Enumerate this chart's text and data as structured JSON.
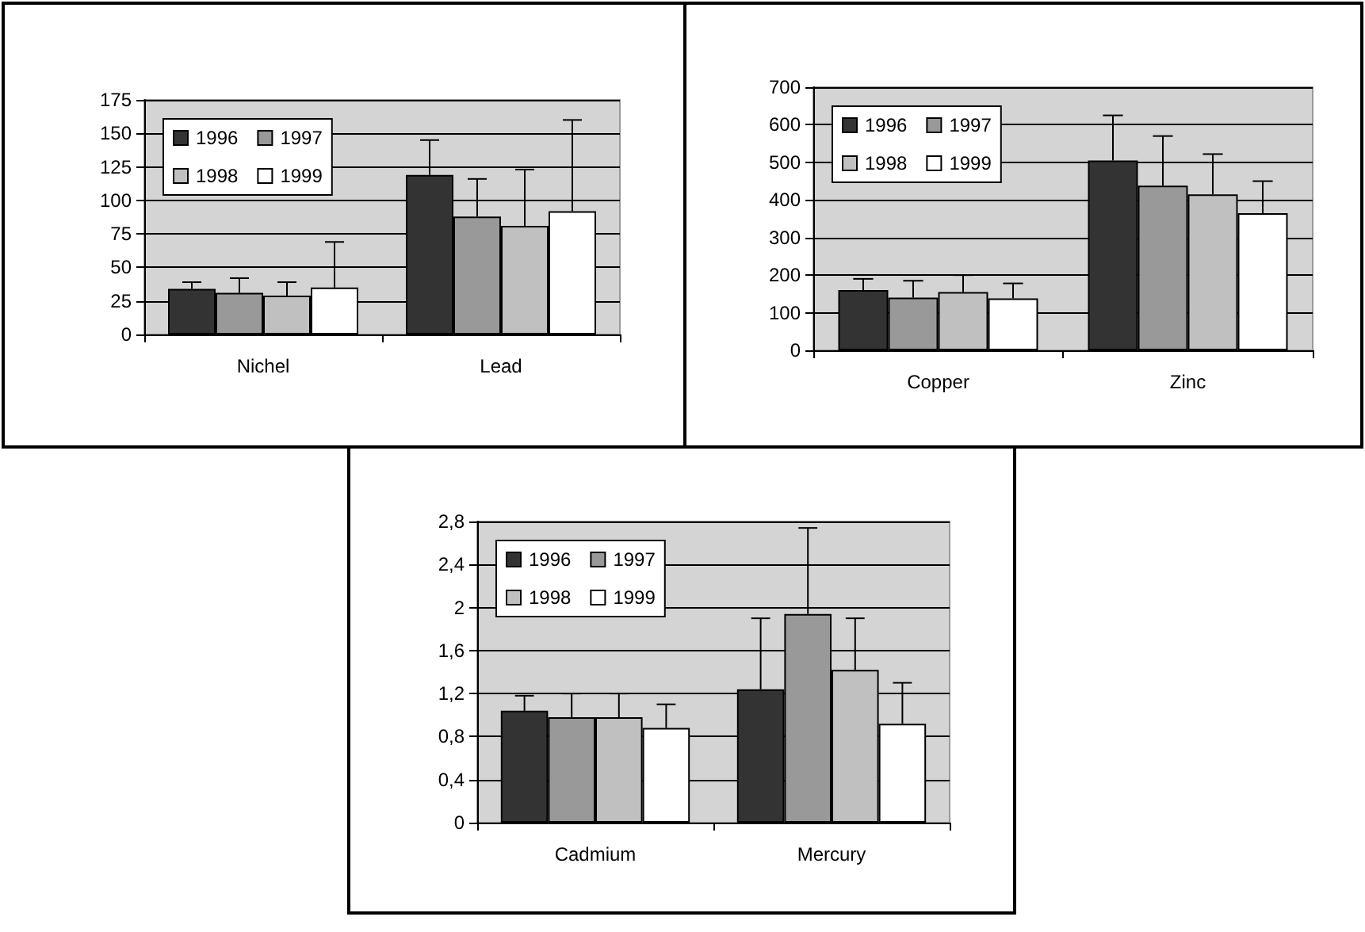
{
  "chart_data": [
    {
      "type": "bar",
      "categories": [
        "Nichel",
        "Lead"
      ],
      "ylim": [
        0,
        175
      ],
      "yticks": [
        0,
        25,
        50,
        75,
        100,
        125,
        150,
        175
      ],
      "grid": "y",
      "legend": "top left",
      "series": [
        {
          "name": "1996",
          "color": "#333333",
          "values": [
            34,
            119
          ],
          "errors": [
            [
              34,
              39
            ],
            [
              119,
              145
            ]
          ]
        },
        {
          "name": "1997",
          "color": "#999999",
          "values": [
            31,
            88
          ],
          "errors": [
            [
              31,
              42
            ],
            [
              88,
              116
            ]
          ]
        },
        {
          "name": "1998",
          "color": "#c0c0c0",
          "values": [
            29,
            81
          ],
          "errors": [
            [
              29,
              39
            ],
            [
              81,
              123
            ]
          ]
        },
        {
          "name": "1999",
          "color": "#ffffff",
          "values": [
            35,
            92
          ],
          "errors": [
            [
              35,
              69
            ],
            [
              92,
              160
            ]
          ]
        }
      ]
    },
    {
      "type": "bar",
      "categories": [
        "Copper",
        "Zinc"
      ],
      "ylim": [
        0,
        700
      ],
      "yticks": [
        0,
        100,
        200,
        300,
        400,
        500,
        600,
        700
      ],
      "grid": "y",
      "legend": "top left",
      "series": [
        {
          "name": "1996",
          "color": "#333333",
          "values": [
            160,
            505
          ],
          "errors": [
            [
              160,
              190
            ],
            [
              505,
              625
            ]
          ]
        },
        {
          "name": "1997",
          "color": "#999999",
          "values": [
            140,
            438
          ],
          "errors": [
            [
              140,
              185
            ],
            [
              438,
              570
            ]
          ]
        },
        {
          "name": "1998",
          "color": "#c0c0c0",
          "values": [
            155,
            415
          ],
          "errors": [
            [
              155,
              200
            ],
            [
              415,
              522
            ]
          ]
        },
        {
          "name": "1999",
          "color": "#ffffff",
          "values": [
            138,
            365
          ],
          "errors": [
            [
              138,
              178
            ],
            [
              365,
              450
            ]
          ]
        }
      ]
    },
    {
      "type": "bar",
      "categories": [
        "Cadmium",
        "Mercury"
      ],
      "ylim": [
        0,
        2.8
      ],
      "yticks": [
        0,
        {
          "value": 0.4,
          "label": "0,4"
        },
        {
          "value": 0.8,
          "label": "0,8"
        },
        {
          "value": 1.2,
          "label": "1,2"
        },
        {
          "value": 1.6,
          "label": "1,6"
        },
        2,
        {
          "value": 2.4,
          "label": "2,4"
        },
        {
          "value": 2.8,
          "label": "2,8"
        }
      ],
      "grid": "y",
      "legend": "top left",
      "series": [
        {
          "name": "1996",
          "color": "#333333",
          "values": [
            1.04,
            1.24
          ],
          "errors": [
            [
              1.04,
              1.18
            ],
            [
              1.24,
              1.9
            ]
          ]
        },
        {
          "name": "1997",
          "color": "#999999",
          "values": [
            0.98,
            1.94
          ],
          "errors": [
            [
              0.98,
              1.2
            ],
            [
              1.94,
              2.74
            ]
          ]
        },
        {
          "name": "1998",
          "color": "#c0c0c0",
          "values": [
            0.98,
            1.42
          ],
          "errors": [
            [
              0.98,
              1.2
            ],
            [
              1.42,
              1.9
            ]
          ]
        },
        {
          "name": "1999",
          "color": "#ffffff",
          "values": [
            0.88,
            0.92
          ],
          "errors": [
            [
              0.88,
              1.1
            ],
            [
              0.92,
              1.3
            ]
          ]
        }
      ]
    }
  ]
}
